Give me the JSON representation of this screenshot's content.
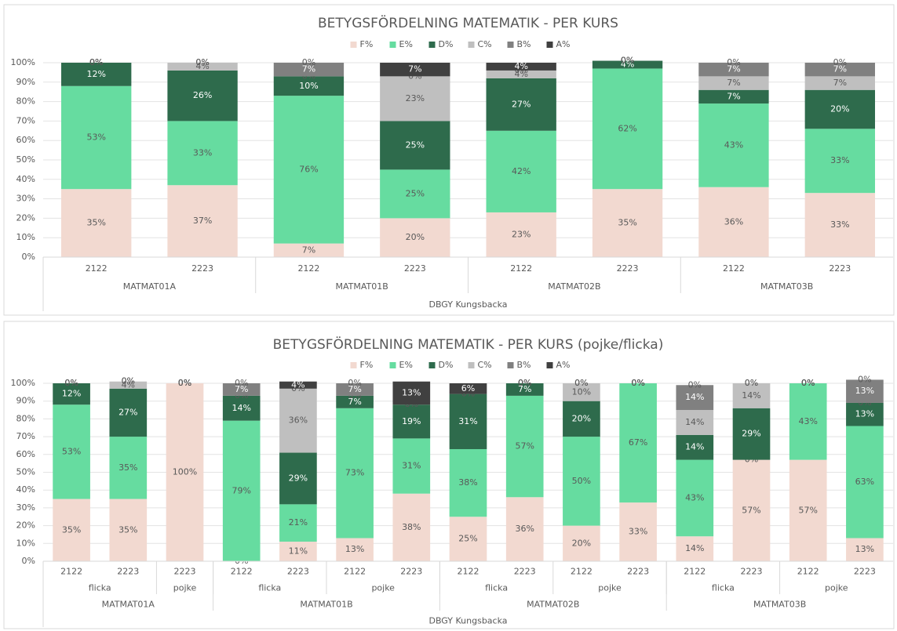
{
  "chart_data": [
    {
      "type": "stacked_bar",
      "title": "BETYGSFÖRDELNING MATEMATIK - PER KURS",
      "categories": [
        "2122",
        "2223",
        "2122",
        "2223",
        "2122",
        "2223",
        "2122",
        "2223"
      ],
      "category_groups": [
        [
          "MATMAT01A",
          null,
          "MATMAT01B",
          null,
          "MATMAT02B",
          null,
          "MATMAT03B",
          null
        ],
        [
          "DBGY Kungsbacka",
          null,
          null,
          null,
          null,
          null,
          null,
          null
        ]
      ],
      "ylim": [
        0,
        100
      ],
      "yticks": [
        {
          "value": 0,
          "label": "0%"
        },
        {
          "value": 10,
          "label": "10%"
        },
        {
          "value": 20,
          "label": "20%"
        },
        {
          "value": 30,
          "label": "30%"
        },
        {
          "value": 40,
          "label": "40%"
        },
        {
          "value": 50,
          "label": "50%"
        },
        {
          "value": 60,
          "label": "60%"
        },
        {
          "value": 70,
          "label": "70%"
        },
        {
          "value": 80,
          "label": "80%"
        },
        {
          "value": 90,
          "label": "90%"
        },
        {
          "value": 100,
          "label": "100%"
        }
      ],
      "grid": true,
      "legend": "top",
      "series": [
        {
          "name": "F%",
          "color": "#f2d9d0",
          "values": [
            35,
            37,
            7,
            20,
            23,
            35,
            36,
            33
          ],
          "value_labels": [
            "35%",
            "37%",
            "7%",
            "20%",
            "23%",
            "35%",
            "36%",
            "33%"
          ]
        },
        {
          "name": "E%",
          "color": "#66dca0",
          "values": [
            53,
            33,
            76,
            25,
            42,
            62,
            43,
            33
          ],
          "value_labels": [
            "53%",
            "33%",
            "76%",
            "25%",
            "42%",
            "62%",
            "43%",
            "33%"
          ]
        },
        {
          "name": "D%",
          "color": "#2e6b4c",
          "values": [
            12,
            26,
            10,
            25,
            27,
            4,
            7,
            20
          ],
          "value_labels": [
            "12%",
            "26%",
            "10%",
            "25%",
            "27%",
            "4%",
            "7%",
            "20%"
          ]
        },
        {
          "name": "C%",
          "color": "#bfbfbf",
          "values": [
            0,
            4,
            0,
            23,
            4,
            0,
            7,
            7
          ],
          "value_labels": [
            "0%",
            "4%",
            "0%",
            "23%",
            "4%",
            "0%",
            "7%",
            "7%"
          ]
        },
        {
          "name": "B%",
          "color": "#808080",
          "values": [
            0,
            0,
            7,
            0,
            0,
            0,
            7,
            7
          ],
          "value_labels": [
            "0%",
            "0%",
            "7%",
            "0%",
            "0%",
            "0%",
            "7%",
            "7%"
          ]
        },
        {
          "name": "A%",
          "color": "#404040",
          "values": [
            0,
            0,
            0,
            7,
            4,
            0,
            0,
            0
          ],
          "value_labels": [
            "0%",
            "0%",
            "0%",
            "7%",
            "4%",
            "0%",
            "0%",
            "0%"
          ]
        }
      ]
    },
    {
      "type": "stacked_bar",
      "title": "BETYGSFÖRDELNING MATEMATIK - PER KURS (pojke/flicka)",
      "categories": [
        "2122",
        "2223",
        "2223",
        "2122",
        "2223",
        "2122",
        "2223",
        "2122",
        "2223",
        "2122",
        "2223",
        "2122",
        "2223",
        "2122",
        "2223"
      ],
      "category_groups": [
        [
          "flicka",
          null,
          "pojke",
          "flicka",
          null,
          "pojke",
          null,
          "flicka",
          null,
          "pojke",
          null,
          "flicka",
          null,
          "pojke",
          null
        ],
        [
          "MATMAT01A",
          null,
          null,
          "MATMAT01B",
          null,
          null,
          null,
          "MATMAT02B",
          null,
          null,
          null,
          "MATMAT03B",
          null,
          null,
          null
        ],
        [
          "DBGY Kungsbacka",
          null,
          null,
          null,
          null,
          null,
          null,
          null,
          null,
          null,
          null,
          null,
          null,
          null,
          null
        ]
      ],
      "ylim": [
        0,
        100
      ],
      "yticks": [
        {
          "value": 0,
          "label": "0%"
        },
        {
          "value": 10,
          "label": "10%"
        },
        {
          "value": 20,
          "label": "20%"
        },
        {
          "value": 30,
          "label": "30%"
        },
        {
          "value": 40,
          "label": "40%"
        },
        {
          "value": 50,
          "label": "50%"
        },
        {
          "value": 60,
          "label": "60%"
        },
        {
          "value": 70,
          "label": "70%"
        },
        {
          "value": 80,
          "label": "80%"
        },
        {
          "value": 90,
          "label": "90%"
        },
        {
          "value": 100,
          "label": "100%"
        }
      ],
      "grid": true,
      "legend": "top",
      "series": [
        {
          "name": "F%",
          "color": "#f2d9d0",
          "values": [
            35,
            35,
            100,
            0,
            11,
            13,
            38,
            25,
            36,
            20,
            33,
            14,
            57,
            57,
            13
          ],
          "value_labels": [
            "35%",
            "35%",
            "100%",
            "0%",
            "11%",
            "13%",
            "38%",
            "25%",
            "36%",
            "20%",
            "33%",
            "14%",
            "57%",
            "57%",
            "13%"
          ]
        },
        {
          "name": "E%",
          "color": "#66dca0",
          "values": [
            53,
            35,
            0,
            79,
            21,
            73,
            31,
            38,
            57,
            50,
            67,
            43,
            0,
            43,
            63
          ],
          "value_labels": [
            "53%",
            "35%",
            "0%",
            "79%",
            "21%",
            "73%",
            "31%",
            "38%",
            "57%",
            "50%",
            "67%",
            "43%",
            "0%",
            "43%",
            "63%"
          ]
        },
        {
          "name": "D%",
          "color": "#2e6b4c",
          "values": [
            12,
            27,
            0,
            14,
            29,
            7,
            19,
            31,
            7,
            20,
            0,
            14,
            29,
            0,
            13
          ],
          "value_labels": [
            "12%",
            "27%",
            "0%",
            "14%",
            "29%",
            "7%",
            "19%",
            "31%",
            "7%",
            "20%",
            "0%",
            "14%",
            "29%",
            "0%",
            "13%"
          ]
        },
        {
          "name": "C%",
          "color": "#bfbfbf",
          "values": [
            0,
            4,
            0,
            0,
            36,
            0,
            0,
            0,
            0,
            10,
            0,
            14,
            14,
            0,
            0
          ],
          "value_labels": [
            "0%",
            "4%",
            "0%",
            "0%",
            "36%",
            "0%",
            "0%",
            "0%",
            "0%",
            "10%",
            "0%",
            "14%",
            "14%",
            "0%",
            "0%"
          ]
        },
        {
          "name": "B%",
          "color": "#808080",
          "values": [
            0,
            0,
            0,
            7,
            0,
            7,
            0,
            0,
            0,
            0,
            0,
            14,
            0,
            0,
            13
          ],
          "value_labels": [
            "0%",
            "0%",
            "0%",
            "7%",
            "0%",
            "7%",
            "0%",
            "0%",
            "0%",
            "0%",
            "0%",
            "14%",
            "0%",
            "0%",
            "13%"
          ]
        },
        {
          "name": "A%",
          "color": "#404040",
          "values": [
            0,
            0,
            0,
            0,
            4,
            0,
            13,
            6,
            0,
            0,
            0,
            0,
            0,
            0,
            0
          ],
          "value_labels": [
            "0%",
            "0%",
            "0%",
            "0%",
            "4%",
            "0%",
            "13%",
            "6%",
            "0%",
            "0%",
            "0%",
            "0%",
            "0%",
            "0%",
            "0%"
          ]
        }
      ]
    }
  ]
}
